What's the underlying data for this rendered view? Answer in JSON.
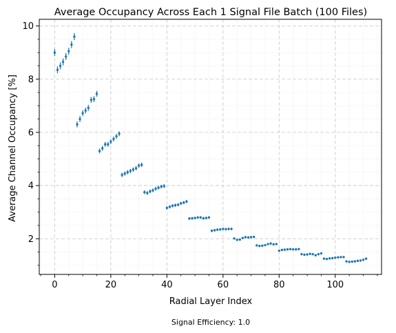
{
  "chart_data": {
    "type": "scatter",
    "title": "Average Occupancy Across Each 1 Signal File Batch (100 Files)",
    "xlabel": "Radial Layer Index",
    "ylabel": "Average Channel Occupancy [%]",
    "footnote": "Signal Efficiency: 1.0",
    "xlim": [
      -5.5,
      116.5
    ],
    "ylim": [
      0.66,
      10.25
    ],
    "xticks": [
      0,
      20,
      40,
      60,
      80,
      100
    ],
    "yticks": [
      2,
      4,
      6,
      8,
      10
    ],
    "grid": true,
    "marker_color": "#1f77b4",
    "series": [
      {
        "x": [
          0,
          1,
          2,
          3,
          4,
          5,
          6,
          7,
          8,
          9,
          10,
          11,
          12,
          13,
          14,
          15,
          16,
          17,
          18,
          19,
          20,
          21,
          22,
          23,
          24,
          25,
          26,
          27,
          28,
          29,
          30,
          31,
          32,
          33,
          34,
          35,
          36,
          37,
          38,
          39,
          40,
          41,
          42,
          43,
          44,
          45,
          46,
          47,
          48,
          49,
          50,
          51,
          52,
          53,
          54,
          55,
          56,
          57,
          58,
          59,
          60,
          61,
          62,
          63,
          64,
          65,
          66,
          67,
          68,
          69,
          70,
          71,
          72,
          73,
          74,
          75,
          76,
          77,
          78,
          79,
          80,
          81,
          82,
          83,
          84,
          85,
          86,
          87,
          88,
          89,
          90,
          91,
          92,
          93,
          94,
          95,
          96,
          97,
          98,
          99,
          100,
          101,
          102,
          103,
          104,
          105,
          106,
          107,
          108,
          109,
          110,
          111
        ],
        "y": [
          9.0,
          8.35,
          8.5,
          8.65,
          8.85,
          9.05,
          9.3,
          9.6,
          6.3,
          6.5,
          6.72,
          6.82,
          6.92,
          7.22,
          7.25,
          7.45,
          5.3,
          5.4,
          5.55,
          5.55,
          5.65,
          5.75,
          5.85,
          5.95,
          4.4,
          4.45,
          4.5,
          4.55,
          4.6,
          4.65,
          4.75,
          4.78,
          3.75,
          3.72,
          3.78,
          3.82,
          3.88,
          3.92,
          3.96,
          3.98,
          3.16,
          3.2,
          3.24,
          3.26,
          3.28,
          3.33,
          3.36,
          3.4,
          2.76,
          2.77,
          2.78,
          2.8,
          2.8,
          2.77,
          2.78,
          2.8,
          2.3,
          2.32,
          2.34,
          2.35,
          2.37,
          2.36,
          2.37,
          2.37,
          2.01,
          1.96,
          1.97,
          2.03,
          2.06,
          2.05,
          2.06,
          2.07,
          1.75,
          1.73,
          1.74,
          1.76,
          1.8,
          1.82,
          1.79,
          1.8,
          1.55,
          1.58,
          1.59,
          1.6,
          1.61,
          1.6,
          1.6,
          1.61,
          1.42,
          1.4,
          1.41,
          1.43,
          1.42,
          1.38,
          1.42,
          1.45,
          1.25,
          1.24,
          1.26,
          1.27,
          1.29,
          1.3,
          1.31,
          1.31,
          1.15,
          1.13,
          1.14,
          1.15,
          1.17,
          1.18,
          1.21,
          1.25
        ],
        "yerr": [
          0.13,
          0.13,
          0.13,
          0.13,
          0.13,
          0.13,
          0.13,
          0.13,
          0.11,
          0.11,
          0.11,
          0.11,
          0.11,
          0.11,
          0.11,
          0.11,
          0.09,
          0.09,
          0.09,
          0.09,
          0.09,
          0.09,
          0.09,
          0.09,
          0.08,
          0.08,
          0.08,
          0.08,
          0.08,
          0.08,
          0.08,
          0.08,
          0.07,
          0.07,
          0.07,
          0.07,
          0.07,
          0.07,
          0.07,
          0.07,
          0.06,
          0.06,
          0.06,
          0.06,
          0.06,
          0.06,
          0.06,
          0.06,
          0.05,
          0.05,
          0.05,
          0.05,
          0.05,
          0.05,
          0.05,
          0.05,
          0.05,
          0.05,
          0.05,
          0.05,
          0.05,
          0.05,
          0.05,
          0.05,
          0.04,
          0.04,
          0.04,
          0.04,
          0.04,
          0.04,
          0.04,
          0.04,
          0.04,
          0.04,
          0.04,
          0.04,
          0.04,
          0.04,
          0.04,
          0.04,
          0.04,
          0.04,
          0.04,
          0.04,
          0.04,
          0.04,
          0.04,
          0.04,
          0.04,
          0.04,
          0.04,
          0.04,
          0.04,
          0.04,
          0.04,
          0.04,
          0.04,
          0.04,
          0.04,
          0.04,
          0.04,
          0.04,
          0.04,
          0.04,
          0.04,
          0.04,
          0.04,
          0.04,
          0.04,
          0.04,
          0.04,
          0.04
        ]
      }
    ]
  }
}
